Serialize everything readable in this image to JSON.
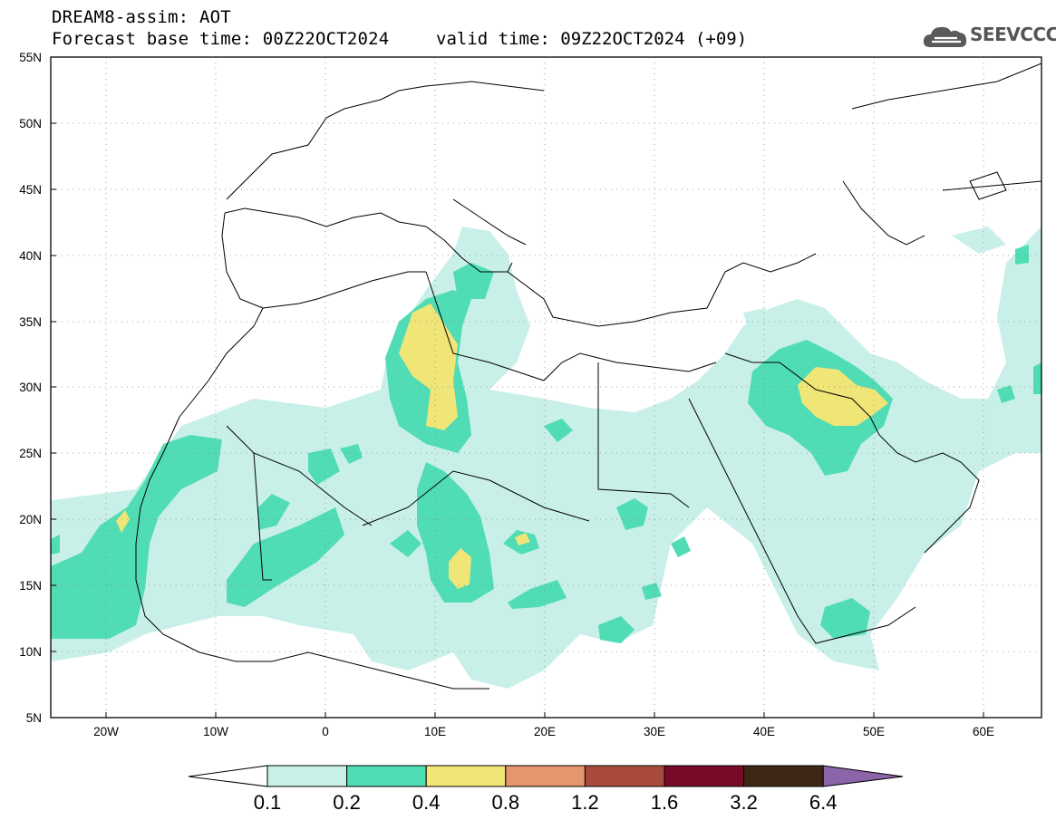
{
  "header": {
    "line1": "DREAM8-assim: AOT",
    "line2": "Forecast base time: 00Z22OCT2024",
    "valid": "valid time: 09Z22OCT2024 (+09)"
  },
  "logo": {
    "text": "SEEVCCC",
    "icon": "cloud-icon"
  },
  "axes": {
    "lon_ticks": [
      "20W",
      "10W",
      "0",
      "10E",
      "20E",
      "30E",
      "40E",
      "50E",
      "60E"
    ],
    "lat_ticks": [
      "55N",
      "50N",
      "45N",
      "40N",
      "35N",
      "30N",
      "25N",
      "20N",
      "15N",
      "10N",
      "5N"
    ],
    "lon_range": [
      -25,
      65
    ],
    "lat_range": [
      5,
      55
    ],
    "grid": "dotted"
  },
  "colorbar": {
    "levels": [
      "0.1",
      "0.2",
      "0.4",
      "0.8",
      "1.2",
      "1.6",
      "3.2",
      "6.4"
    ],
    "colors": [
      "#ffffff",
      "#c8f0e8",
      "#50dcb4",
      "#f0e678",
      "#e6966e",
      "#a84a3c",
      "#780a28",
      "#3c2814",
      "#8c64aa"
    ]
  }
}
